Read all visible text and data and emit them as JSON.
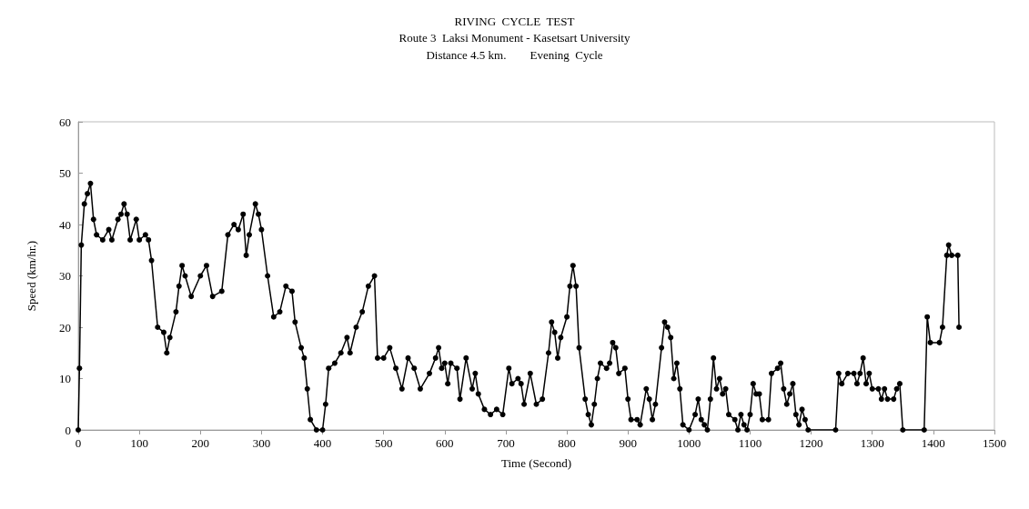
{
  "chart_data": {
    "type": "line",
    "title": "RIVING  CYCLE  TEST",
    "subtitle": "Route 3  Laksi Monument - Kasetsart University\nDistance 4.5 km.        Evening  Cycle",
    "xlabel": "Time (Second)",
    "ylabel": "Speed (km/hr.)",
    "x": [
      0,
      2,
      5,
      10,
      15,
      20,
      25,
      30,
      40,
      50,
      55,
      65,
      70,
      75,
      80,
      85,
      95,
      100,
      110,
      115,
      120,
      130,
      140,
      145,
      150,
      160,
      165,
      170,
      175,
      185,
      200,
      210,
      220,
      235,
      245,
      255,
      262,
      270,
      275,
      280,
      290,
      295,
      300,
      310,
      320,
      330,
      340,
      350,
      355,
      365,
      370,
      375,
      380,
      390,
      400,
      405,
      410,
      420,
      430,
      440,
      445,
      455,
      465,
      475,
      485,
      490,
      500,
      510,
      520,
      530,
      540,
      550,
      560,
      575,
      585,
      590,
      595,
      600,
      605,
      610,
      620,
      625,
      635,
      645,
      650,
      655,
      665,
      675,
      685,
      695,
      705,
      710,
      720,
      725,
      730,
      740,
      750,
      760,
      770,
      775,
      780,
      785,
      790,
      800,
      805,
      810,
      815,
      820,
      830,
      835,
      840,
      845,
      850,
      855,
      865,
      870,
      875,
      880,
      885,
      895,
      900,
      905,
      915,
      920,
      930,
      935,
      940,
      945,
      955,
      960,
      965,
      970,
      975,
      980,
      985,
      990,
      1000,
      1010,
      1015,
      1020,
      1025,
      1030,
      1035,
      1040,
      1045,
      1050,
      1055,
      1060,
      1065,
      1075,
      1080,
      1085,
      1090,
      1095,
      1100,
      1105,
      1110,
      1115,
      1120,
      1130,
      1135,
      1145,
      1150,
      1155,
      1160,
      1165,
      1170,
      1175,
      1180,
      1185,
      1190,
      1195,
      1240,
      1245,
      1250,
      1260,
      1270,
      1275,
      1280,
      1285,
      1290,
      1295,
      1300,
      1310,
      1315,
      1320,
      1325,
      1335,
      1340,
      1345,
      1350,
      1385,
      1390,
      1395,
      1410,
      1415,
      1422,
      1425,
      1430,
      1440,
      1442
    ],
    "series": [
      {
        "color": "#000000",
        "values": [
          0,
          12,
          36,
          44,
          46,
          48,
          41,
          38,
          37,
          39,
          37,
          41,
          42,
          44,
          42,
          37,
          41,
          37,
          38,
          37,
          33,
          20,
          19,
          15,
          18,
          23,
          28,
          32,
          30,
          26,
          30,
          32,
          26,
          27,
          38,
          40,
          39,
          42,
          34,
          38,
          44,
          42,
          39,
          30,
          22,
          23,
          28,
          27,
          21,
          16,
          14,
          8,
          2,
          0,
          0,
          5,
          12,
          13,
          15,
          18,
          15,
          20,
          23,
          28,
          30,
          14,
          14,
          16,
          12,
          8,
          14,
          12,
          8,
          11,
          14,
          16,
          12,
          13,
          9,
          13,
          12,
          6,
          14,
          8,
          11,
          7,
          4,
          3,
          4,
          3,
          12,
          9,
          10,
          9,
          5,
          11,
          5,
          6,
          15,
          21,
          19,
          14,
          18,
          22,
          28,
          32,
          28,
          16,
          6,
          3,
          1,
          5,
          10,
          13,
          12,
          13,
          17,
          16,
          11,
          12,
          6,
          2,
          2,
          1,
          8,
          6,
          2,
          5,
          16,
          21,
          20,
          18,
          10,
          13,
          8,
          1,
          0,
          3,
          6,
          2,
          1,
          0,
          6,
          14,
          8,
          10,
          7,
          8,
          3,
          2,
          0,
          3,
          1,
          0,
          3,
          9,
          7,
          7,
          2,
          2,
          11,
          12,
          13,
          8,
          5,
          7,
          9,
          3,
          1,
          4,
          2,
          0,
          0,
          11,
          9,
          11,
          11,
          9,
          11,
          14,
          9,
          11,
          8,
          8,
          6,
          8,
          6,
          6,
          8,
          9,
          0,
          0,
          22,
          17,
          17,
          20,
          34,
          36,
          34,
          34,
          20
        ]
      }
    ],
    "xlim": [
      0,
      1500
    ],
    "xticks": [
      0,
      100,
      200,
      300,
      400,
      500,
      600,
      700,
      800,
      900,
      1000,
      1100,
      1200,
      1300,
      1400,
      1500
    ],
    "ylim": [
      0,
      60
    ],
    "yticks": [
      0,
      10,
      20,
      30,
      40,
      50,
      60
    ],
    "marker": "circle",
    "line_style": "solid",
    "grid": false
  }
}
